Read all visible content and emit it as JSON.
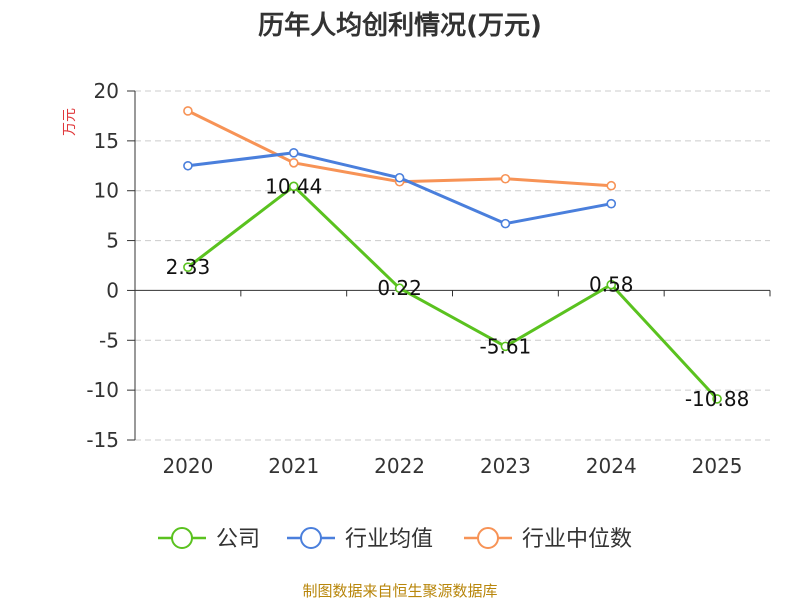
{
  "chart_data": {
    "type": "line",
    "title": "历年人均创利情况(万元)",
    "ylabel": "万元",
    "xlabel": "",
    "categories": [
      "2020",
      "2021",
      "2022",
      "2023",
      "2024",
      "2025"
    ],
    "ylim": [
      -15,
      20
    ],
    "yticks": [
      20,
      15,
      10,
      5,
      0,
      -5,
      -10,
      -15
    ],
    "grid": true,
    "legend_position": "bottom",
    "series": [
      {
        "name": "公司",
        "color": "#5ac21f",
        "values": [
          2.33,
          10.44,
          0.22,
          -5.61,
          0.58,
          -10.88
        ],
        "labels": [
          "2.33",
          "10.44",
          "0.22",
          "-5.61",
          "0.58",
          "-10.88"
        ]
      },
      {
        "name": "行业均值",
        "color": "#4a7fdc",
        "values": [
          12.5,
          13.8,
          11.3,
          6.7,
          8.7,
          null
        ]
      },
      {
        "name": "行业中位数",
        "color": "#f79356",
        "values": [
          18.0,
          12.8,
          10.9,
          11.2,
          10.5,
          null
        ]
      }
    ]
  },
  "source": "制图数据来自恒生聚源数据库"
}
